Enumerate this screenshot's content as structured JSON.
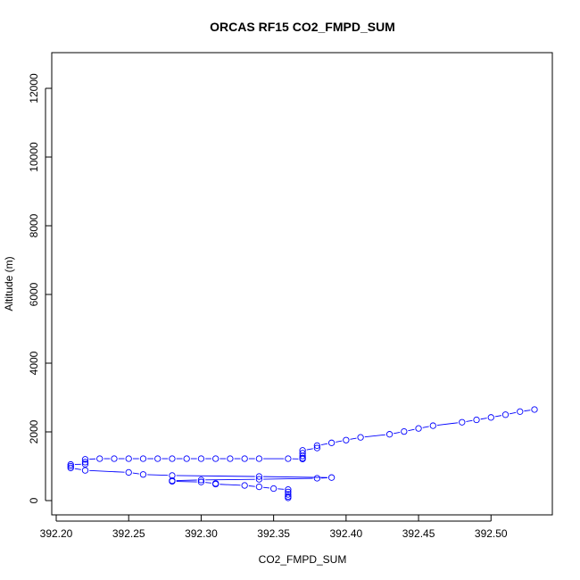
{
  "chart_data": {
    "type": "line",
    "title": "ORCAS RF15 CO2_FMPD_SUM",
    "xlabel": "CO2_FMPD_SUM",
    "ylabel": "Altitude (m)",
    "xlim": [
      392.2,
      392.53
    ],
    "ylim": [
      0,
      12500
    ],
    "x_ticks": [
      392.2,
      392.25,
      392.3,
      392.35,
      392.4,
      392.45,
      392.5
    ],
    "x_tick_labels": [
      "392.20",
      "392.25",
      "392.30",
      "392.35",
      "392.40",
      "392.45",
      "392.50"
    ],
    "y_ticks": [
      0,
      2000,
      4000,
      6000,
      8000,
      10000,
      12000
    ],
    "y_tick_labels": [
      "0",
      "2000",
      "4000",
      "6000",
      "8000",
      "10000",
      "12000"
    ],
    "grid": false,
    "legend": "none",
    "colors": {
      "series": "#0000ff",
      "axis": "#000000"
    },
    "series": [
      {
        "marker": "open-circle",
        "line": "solid",
        "points": [
          [
            392.53,
            2650
          ],
          [
            392.52,
            2590
          ],
          [
            392.51,
            2500
          ],
          [
            392.5,
            2420
          ],
          [
            392.49,
            2350
          ],
          [
            392.48,
            2280
          ],
          [
            392.46,
            2180
          ],
          [
            392.45,
            2100
          ],
          [
            392.44,
            2010
          ],
          [
            392.43,
            1930
          ],
          [
            392.41,
            1840
          ],
          [
            392.4,
            1760
          ],
          [
            392.39,
            1680
          ],
          [
            392.38,
            1600
          ],
          [
            392.38,
            1530
          ],
          [
            392.37,
            1460
          ],
          [
            392.37,
            1380
          ],
          [
            392.37,
            1300
          ],
          [
            392.37,
            1240
          ],
          [
            392.37,
            1210
          ],
          [
            392.36,
            1220
          ],
          [
            392.34,
            1220
          ],
          [
            392.33,
            1220
          ],
          [
            392.32,
            1220
          ],
          [
            392.31,
            1220
          ],
          [
            392.3,
            1220
          ],
          [
            392.29,
            1220
          ],
          [
            392.28,
            1220
          ],
          [
            392.27,
            1220
          ],
          [
            392.26,
            1220
          ],
          [
            392.25,
            1220
          ],
          [
            392.24,
            1220
          ],
          [
            392.23,
            1220
          ],
          [
            392.22,
            1200
          ],
          [
            392.22,
            1120
          ],
          [
            392.22,
            1060
          ],
          [
            392.21,
            1050
          ],
          [
            392.21,
            1000
          ],
          [
            392.21,
            950
          ],
          [
            392.22,
            880
          ],
          [
            392.25,
            820
          ],
          [
            392.26,
            760
          ],
          [
            392.28,
            730
          ],
          [
            392.34,
            700
          ],
          [
            392.39,
            670
          ],
          [
            392.38,
            650
          ],
          [
            392.34,
            620
          ],
          [
            392.3,
            600
          ],
          [
            392.28,
            580
          ],
          [
            392.28,
            560
          ],
          [
            392.3,
            540
          ],
          [
            392.31,
            500
          ],
          [
            392.31,
            480
          ],
          [
            392.33,
            440
          ],
          [
            392.34,
            400
          ],
          [
            392.35,
            350
          ],
          [
            392.36,
            320
          ],
          [
            392.36,
            250
          ],
          [
            392.36,
            180
          ],
          [
            392.36,
            120
          ],
          [
            392.36,
            80
          ]
        ]
      }
    ]
  }
}
